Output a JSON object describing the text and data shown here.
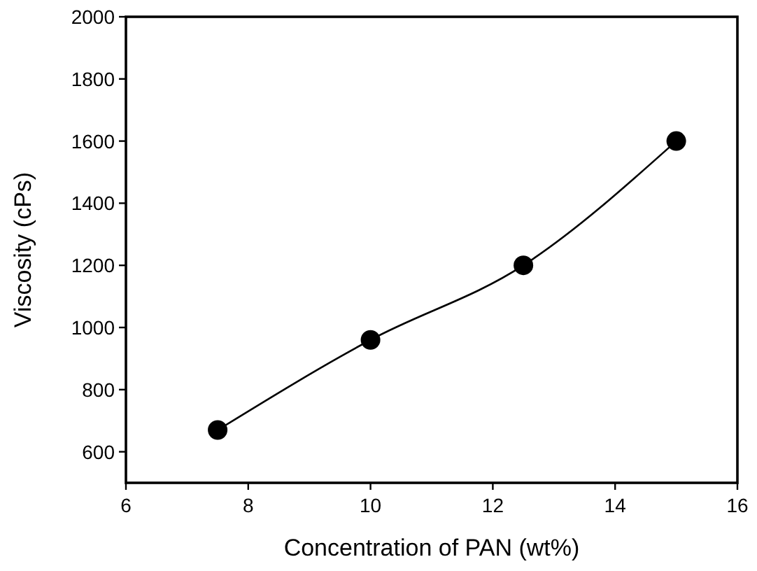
{
  "chart_data": {
    "type": "line",
    "xlabel": "Concentration of PAN (wt%)",
    "ylabel": "Viscosity (cPs)",
    "x": [
      7.5,
      10,
      12.5,
      15
    ],
    "series": [
      {
        "color": "#000000",
        "values": [
          670,
          960,
          1200,
          1600
        ]
      }
    ],
    "xlim": [
      6,
      16
    ],
    "xticks": [
      6,
      8,
      10,
      12,
      14,
      16
    ],
    "ylim": [
      500,
      2000
    ],
    "yticks": [
      600,
      800,
      1000,
      1200,
      1400,
      1600,
      1800,
      2000
    ],
    "marker": "circle",
    "line_style": "solid"
  }
}
